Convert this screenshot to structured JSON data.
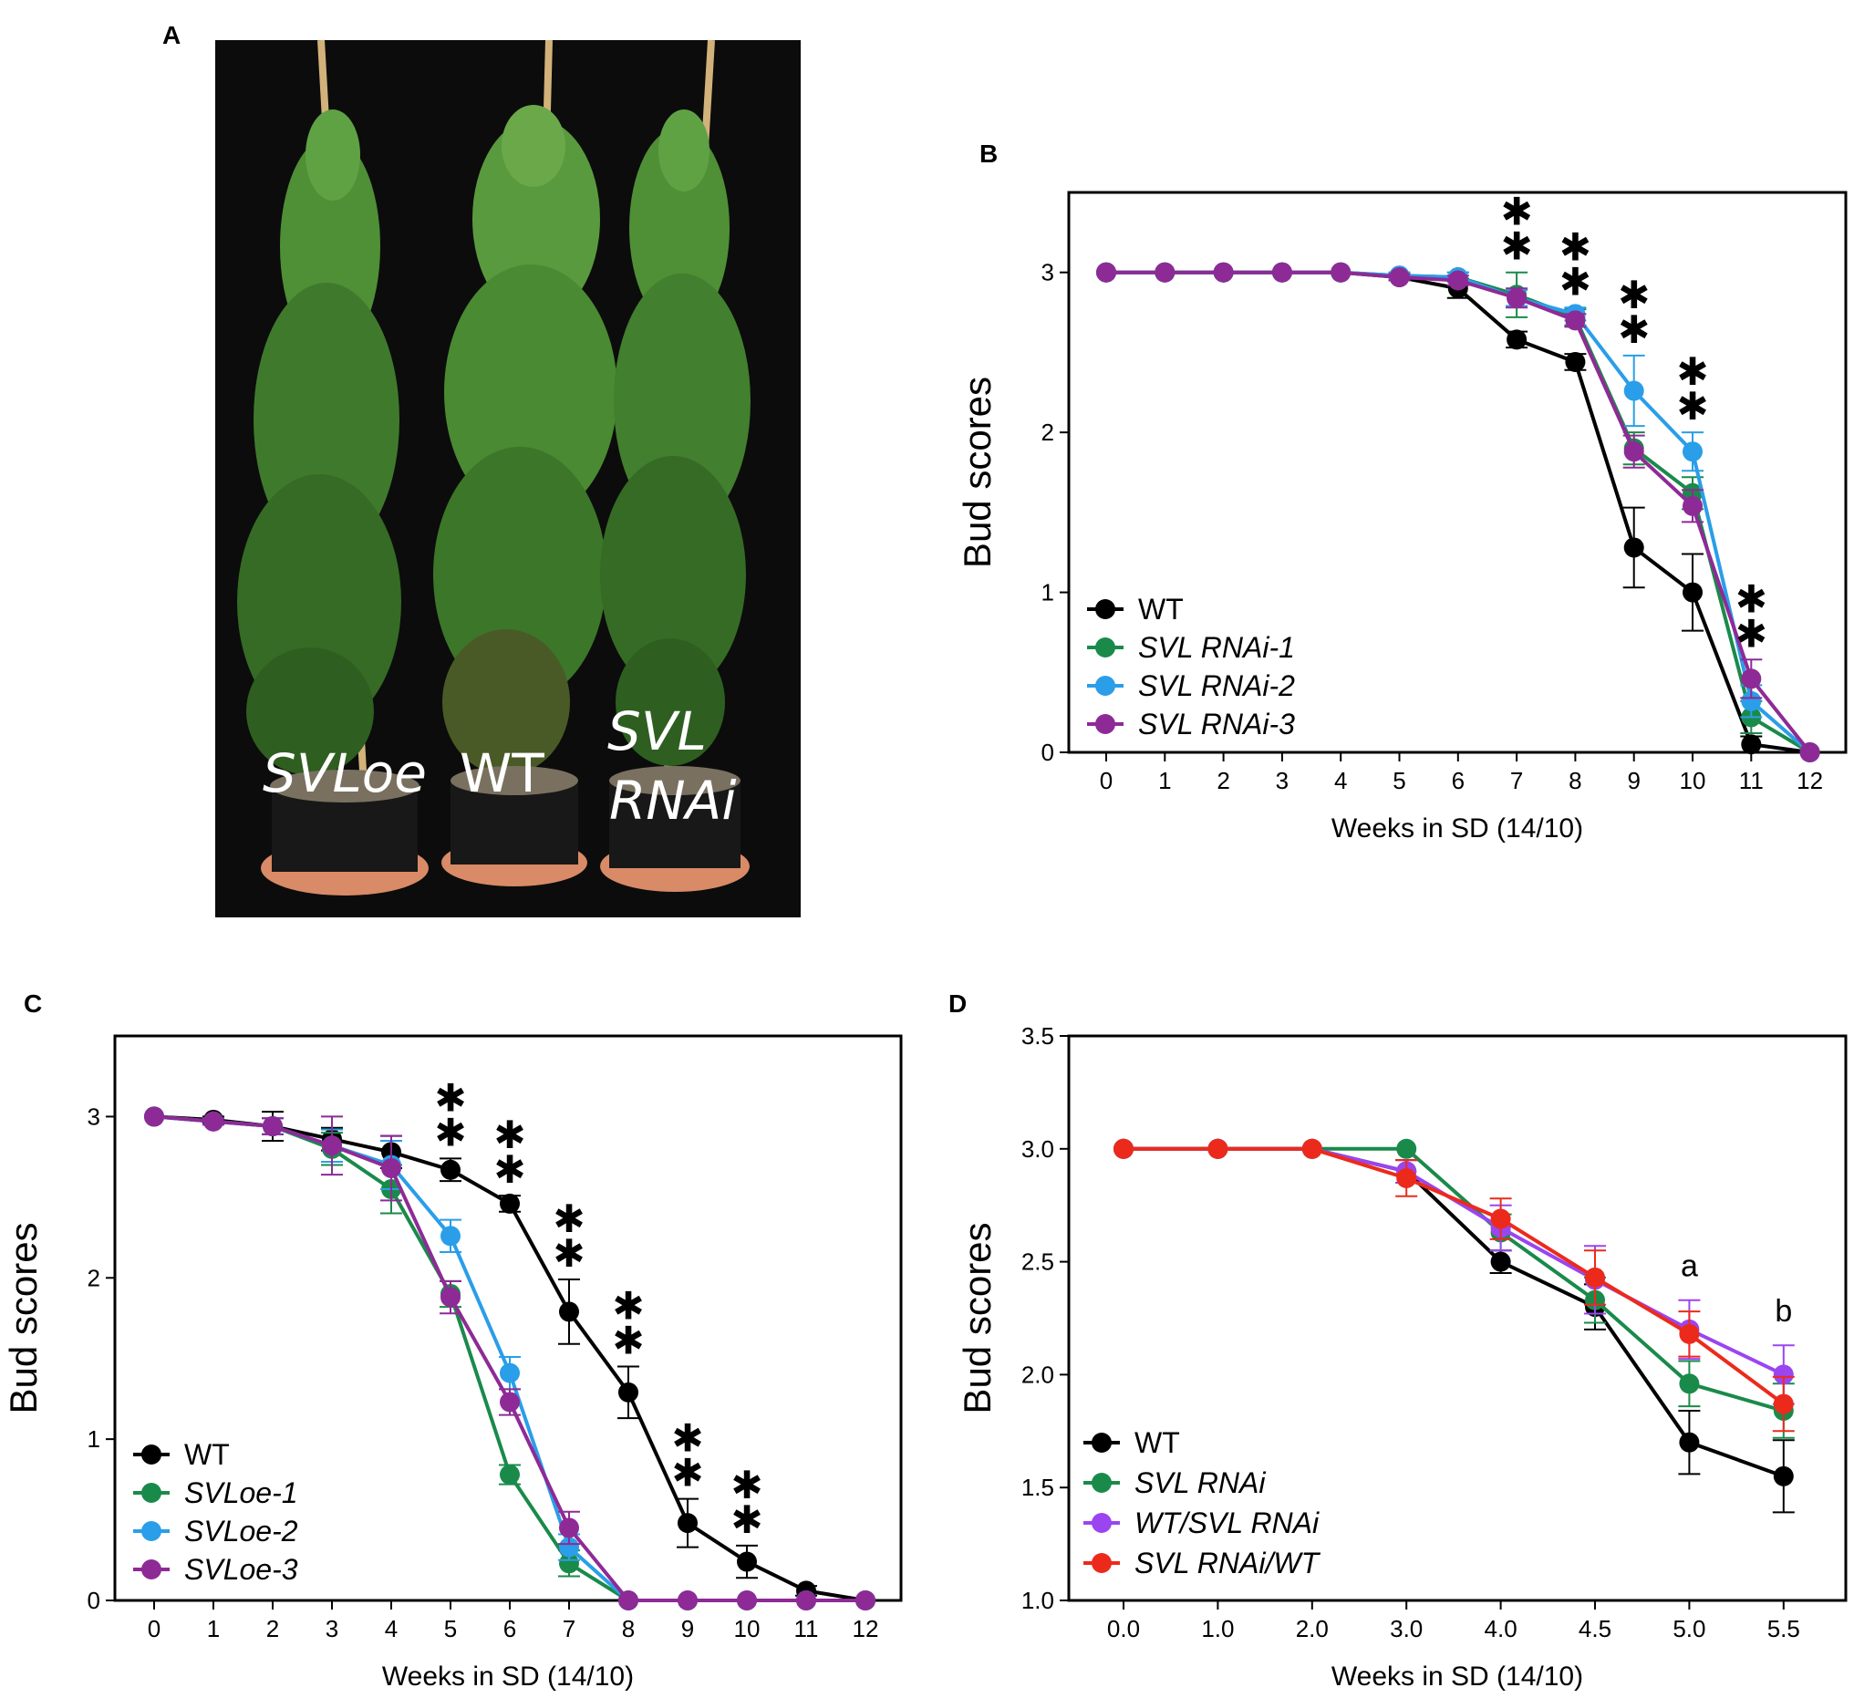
{
  "panels": {
    "A": {
      "letter": "A",
      "labels": [
        "SVLoe",
        "WT",
        "SVL",
        "RNAi"
      ]
    },
    "B": {
      "letter": "B"
    },
    "C": {
      "letter": "C"
    },
    "D": {
      "letter": "D"
    }
  },
  "colors": {
    "WT": "#000000",
    "RNAi-1": "#1a8a4a",
    "RNAi-2": "#2a9ee8",
    "RNAi-3": "#8e2a96",
    "WT-SVL-RNAi": "#9b45f0",
    "SVL-RNAi-WT": "#ec2a1c"
  },
  "chart_data": [
    {
      "panel": "B",
      "type": "line",
      "xlabel": "Weeks in SD (14/10)",
      "ylabel": "Bud scores",
      "x": [
        0,
        1,
        2,
        3,
        4,
        5,
        6,
        7,
        8,
        9,
        10,
        11,
        12
      ],
      "xticks": [
        "0",
        "1",
        "2",
        "3",
        "4",
        "5",
        "6",
        "7",
        "8",
        "9",
        "10",
        "11",
        "12"
      ],
      "ylim": [
        0,
        3.5
      ],
      "yticks": [
        "0",
        "1",
        "2",
        "3"
      ],
      "grid": false,
      "legend_position": "bottom-left",
      "series": [
        {
          "name": "WT",
          "italic": false,
          "color": "#000000",
          "values": [
            3,
            3,
            3,
            3,
            3,
            2.97,
            2.9,
            2.58,
            2.44,
            1.28,
            1.0,
            0.05,
            0
          ],
          "errors": [
            0,
            0,
            0,
            0,
            0,
            0.02,
            0.06,
            0.05,
            0.05,
            0.25,
            0.24,
            0.05,
            0
          ]
        },
        {
          "name": "SVL RNAi-1",
          "italic": true,
          "color": "#1a8a4a",
          "values": [
            3,
            3,
            3,
            3,
            3,
            2.98,
            2.97,
            2.86,
            2.72,
            1.9,
            1.62,
            0.22,
            0
          ],
          "errors": [
            0,
            0,
            0,
            0,
            0,
            0.02,
            0.03,
            0.14,
            0.05,
            0.1,
            0.1,
            0.1,
            0
          ]
        },
        {
          "name": "SVL RNAi-2",
          "italic": true,
          "color": "#2a9ee8",
          "values": [
            3,
            3,
            3,
            3,
            3,
            2.98,
            2.97,
            2.84,
            2.74,
            2.26,
            1.88,
            0.32,
            0
          ],
          "errors": [
            0,
            0,
            0,
            0,
            0,
            0.02,
            0.03,
            0.05,
            0.04,
            0.22,
            0.12,
            0.1,
            0
          ]
        },
        {
          "name": "SVL RNAi-3",
          "italic": true,
          "color": "#8e2a96",
          "values": [
            3,
            3,
            3,
            3,
            3,
            2.97,
            2.95,
            2.84,
            2.7,
            1.88,
            1.54,
            0.46,
            0
          ],
          "errors": [
            0,
            0,
            0,
            0,
            0,
            0.02,
            0.03,
            0.06,
            0.04,
            0.1,
            0.1,
            0.12,
            0
          ]
        }
      ],
      "annotations": [
        {
          "x": 7,
          "text": "✱✱"
        },
        {
          "x": 8,
          "text": "✱✱"
        },
        {
          "x": 9,
          "text": "✱✱"
        },
        {
          "x": 10,
          "text": "✱✱"
        },
        {
          "x": 11,
          "text": "✱✱"
        }
      ]
    },
    {
      "panel": "C",
      "type": "line",
      "xlabel": "Weeks in SD (14/10)",
      "ylabel": "Bud scores",
      "x": [
        0,
        1,
        2,
        3,
        4,
        5,
        6,
        7,
        8,
        9,
        10,
        11,
        12
      ],
      "xticks": [
        "0",
        "1",
        "2",
        "3",
        "4",
        "5",
        "6",
        "7",
        "8",
        "9",
        "10",
        "11",
        "12"
      ],
      "ylim": [
        0,
        3.5
      ],
      "yticks": [
        "0",
        "1",
        "2",
        "3"
      ],
      "grid": false,
      "legend_position": "bottom-left",
      "series": [
        {
          "name": "WT",
          "italic": false,
          "color": "#000000",
          "values": [
            3,
            2.98,
            2.94,
            2.86,
            2.78,
            2.67,
            2.46,
            1.79,
            1.29,
            0.48,
            0.24,
            0.06,
            0
          ],
          "errors": [
            0,
            0.02,
            0.09,
            0.07,
            0.1,
            0.07,
            0.05,
            0.2,
            0.16,
            0.15,
            0.1,
            0.03,
            0
          ]
        },
        {
          "name": "SVLoe-1",
          "italic": true,
          "color": "#1a8a4a",
          "values": [
            3,
            2.97,
            2.94,
            2.8,
            2.55,
            1.9,
            0.78,
            0.23,
            0,
            0,
            0,
            0,
            0
          ],
          "errors": [
            0,
            0.02,
            0.05,
            0.1,
            0.15,
            0.08,
            0.06,
            0.08,
            0,
            0,
            0,
            0,
            0
          ]
        },
        {
          "name": "SVLoe-2",
          "italic": true,
          "color": "#2a9ee8",
          "values": [
            3,
            2.97,
            2.94,
            2.82,
            2.7,
            2.26,
            1.41,
            0.33,
            0,
            0,
            0,
            0,
            0
          ],
          "errors": [
            0,
            0.02,
            0.05,
            0.1,
            0.15,
            0.1,
            0.1,
            0.08,
            0,
            0,
            0,
            0,
            0
          ]
        },
        {
          "name": "SVLoe-3",
          "italic": true,
          "color": "#8e2a96",
          "values": [
            3,
            2.97,
            2.94,
            2.82,
            2.68,
            1.88,
            1.23,
            0.45,
            0,
            0,
            0,
            0,
            0
          ],
          "errors": [
            0,
            0.02,
            0.05,
            0.18,
            0.2,
            0.1,
            0.08,
            0.1,
            0,
            0,
            0,
            0,
            0
          ]
        }
      ],
      "annotations": [
        {
          "x": 5,
          "text": "✱✱"
        },
        {
          "x": 6,
          "text": "✱✱"
        },
        {
          "x": 7,
          "text": "✱✱"
        },
        {
          "x": 8,
          "text": "✱✱"
        },
        {
          "x": 9,
          "text": "✱✱"
        },
        {
          "x": 10,
          "text": "✱✱"
        }
      ]
    },
    {
      "panel": "D",
      "type": "line",
      "xlabel": "Weeks in SD (14/10)",
      "ylabel": "Bud scores",
      "x": [
        "0.0",
        "1.0",
        "2.0",
        "3.0",
        "4.0",
        "4.5",
        "5.0",
        "5.5"
      ],
      "xticks": [
        "0.0",
        "1.0",
        "2.0",
        "3.0",
        "4.0",
        "4.5",
        "5.0",
        "5.5"
      ],
      "ylim": [
        1.0,
        3.5
      ],
      "yticks": [
        "1.0",
        "1.5",
        "2.0",
        "2.5",
        "3.0",
        "3.5"
      ],
      "grid": false,
      "legend_position": "bottom-left",
      "series": [
        {
          "name": "WT",
          "italic": false,
          "color": "#000000",
          "values": [
            3.0,
            3.0,
            3.0,
            2.9,
            2.5,
            2.3,
            1.7,
            1.55
          ],
          "errors": [
            0,
            0,
            0,
            0.05,
            0.05,
            0.1,
            0.14,
            0.16
          ]
        },
        {
          "name": "SVL RNAi",
          "italic": true,
          "color": "#1a8a4a",
          "values": [
            3.0,
            3.0,
            3.0,
            3.0,
            2.63,
            2.33,
            1.96,
            1.84
          ],
          "errors": [
            0,
            0,
            0,
            0,
            0.08,
            0.1,
            0.1,
            0.12
          ]
        },
        {
          "name": "WT/SVL RNAi",
          "italic": true,
          "color": "#9b45f0",
          "values": [
            3.0,
            3.0,
            3.0,
            2.9,
            2.65,
            2.42,
            2.2,
            2.0
          ],
          "errors": [
            0,
            0,
            0,
            0.05,
            0.1,
            0.15,
            0.13,
            0.13
          ]
        },
        {
          "name": "SVL RNAi/WT",
          "italic": true,
          "color": "#ec2a1c",
          "values": [
            3.0,
            3.0,
            3.0,
            2.87,
            2.69,
            2.43,
            2.18,
            1.87
          ],
          "errors": [
            0,
            0,
            0,
            0.08,
            0.09,
            0.12,
            0.1,
            0.12
          ]
        }
      ],
      "annotations": [
        {
          "x": "5.0",
          "text": "a"
        },
        {
          "x": "5.5",
          "text": "b"
        }
      ]
    }
  ]
}
